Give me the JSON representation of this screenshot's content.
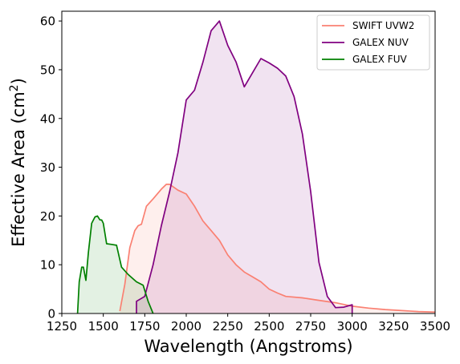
{
  "chart_data": {
    "type": "area",
    "title": "",
    "xlabel": "Wavelength (Angstroms)",
    "ylabel_main": "Effective Area (cm",
    "ylabel_sup": "2",
    "ylabel_close": ")",
    "xlim": [
      1250,
      3500
    ],
    "ylim": [
      0,
      62
    ],
    "xticks": [
      1250,
      1500,
      1750,
      2000,
      2250,
      2500,
      2750,
      3000,
      3250,
      3500
    ],
    "yticks": [
      0,
      10,
      20,
      30,
      40,
      50,
      60
    ],
    "grid": false,
    "legend_position": "top-right",
    "series": [
      {
        "name": "SWIFT UVW2",
        "color": "#fa8072",
        "fill_opacity": 0.13,
        "x": [
          1600,
          1630,
          1660,
          1690,
          1710,
          1730,
          1760,
          1800,
          1850,
          1880,
          1900,
          1950,
          2000,
          2050,
          2100,
          2150,
          2200,
          2250,
          2300,
          2350,
          2400,
          2450,
          2500,
          2550,
          2600,
          2700,
          2800,
          2900,
          3000,
          3100,
          3200,
          3300,
          3400,
          3500
        ],
        "y": [
          0.5,
          6,
          13.5,
          17,
          18,
          18.3,
          22,
          23.5,
          25.5,
          26.5,
          26.5,
          25.3,
          24.5,
          22,
          19,
          17,
          15,
          12,
          10,
          8.5,
          7.5,
          6.5,
          5,
          4.2,
          3.5,
          3.2,
          2.7,
          2.2,
          1.5,
          1.1,
          0.8,
          0.6,
          0.4,
          0.3
        ]
      },
      {
        "name": "GALEX NUV",
        "color": "#800080",
        "fill_opacity": 0.11,
        "x": [
          1700,
          1700,
          1750,
          1800,
          1850,
          1900,
          1950,
          2000,
          2050,
          2100,
          2150,
          2200,
          2250,
          2300,
          2350,
          2400,
          2450,
          2500,
          2550,
          2600,
          2650,
          2700,
          2750,
          2800,
          2850,
          2900,
          2950,
          3000,
          3000
        ],
        "y": [
          0,
          2.5,
          3.5,
          10,
          18,
          25,
          33,
          43.8,
          45.8,
          51.5,
          58,
          60,
          55,
          51.6,
          46.5,
          49.4,
          52.3,
          51.4,
          50.3,
          48.7,
          44.5,
          36.8,
          25,
          10.5,
          3.5,
          1.2,
          1.3,
          1.8,
          0
        ]
      },
      {
        "name": "GALEX FUV",
        "color": "#008000",
        "fill_opacity": 0.11,
        "x": [
          1345,
          1355,
          1370,
          1380,
          1395,
          1410,
          1430,
          1450,
          1465,
          1480,
          1490,
          1500,
          1520,
          1545,
          1580,
          1610,
          1650,
          1700,
          1740,
          1770,
          1800
        ],
        "y": [
          0,
          6.5,
          9.5,
          9.5,
          6.8,
          12.5,
          18.5,
          19.8,
          20,
          19.2,
          19.2,
          18.5,
          14.3,
          14.2,
          14,
          9.5,
          8,
          6.5,
          5.8,
          2.5,
          0
        ]
      }
    ]
  }
}
